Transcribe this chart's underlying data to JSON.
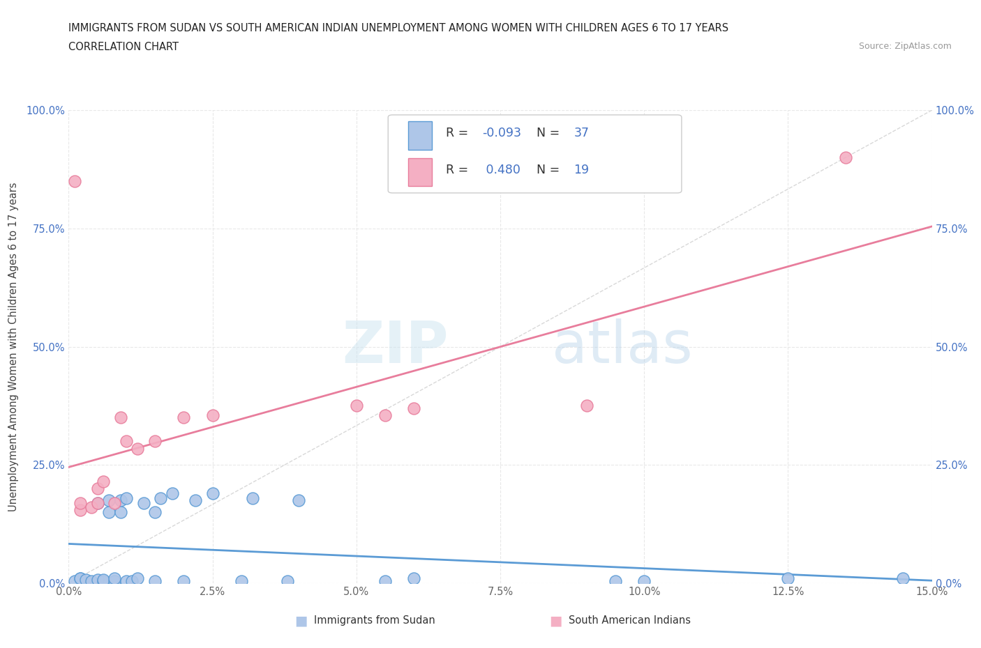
{
  "title_line1": "IMMIGRANTS FROM SUDAN VS SOUTH AMERICAN INDIAN UNEMPLOYMENT AMONG WOMEN WITH CHILDREN AGES 6 TO 17 YEARS",
  "title_line2": "CORRELATION CHART",
  "source_text": "Source: ZipAtlas.com",
  "ylabel": "Unemployment Among Women with Children Ages 6 to 17 years",
  "xlim": [
    0.0,
    0.15
  ],
  "ylim": [
    0.0,
    1.0
  ],
  "xtick_labels": [
    "0.0%",
    "2.5%",
    "5.0%",
    "7.5%",
    "10.0%",
    "12.5%",
    "15.0%"
  ],
  "xtick_vals": [
    0.0,
    0.025,
    0.05,
    0.075,
    0.1,
    0.125,
    0.15
  ],
  "ytick_labels": [
    "0.0%",
    "25.0%",
    "50.0%",
    "75.0%",
    "100.0%"
  ],
  "ytick_vals": [
    0.0,
    0.25,
    0.5,
    0.75,
    1.0
  ],
  "legend_label1": "Immigrants from Sudan",
  "legend_label2": "South American Indians",
  "R1": -0.093,
  "N1": 37,
  "R2": 0.48,
  "N2": 19,
  "color_blue_fill": "#aec6e8",
  "color_pink_fill": "#f4afc3",
  "color_blue_edge": "#5b9bd5",
  "color_pink_edge": "#e87d9c",
  "color_blue_text": "#4472c4",
  "color_diag": "#c8c8c8",
  "watermark_zip": "ZIP",
  "watermark_atlas": "atlas",
  "blue_x": [
    0.001,
    0.002,
    0.002,
    0.003,
    0.004,
    0.005,
    0.005,
    0.006,
    0.006,
    0.007,
    0.007,
    0.008,
    0.008,
    0.009,
    0.009,
    0.01,
    0.01,
    0.011,
    0.012,
    0.013,
    0.015,
    0.015,
    0.016,
    0.018,
    0.02,
    0.022,
    0.025,
    0.03,
    0.032,
    0.038,
    0.04,
    0.055,
    0.06,
    0.095,
    0.1,
    0.125,
    0.145
  ],
  "blue_y": [
    0.005,
    0.01,
    0.01,
    0.008,
    0.005,
    0.008,
    0.17,
    0.005,
    0.008,
    0.15,
    0.175,
    0.005,
    0.01,
    0.15,
    0.175,
    0.005,
    0.18,
    0.005,
    0.01,
    0.17,
    0.005,
    0.15,
    0.18,
    0.19,
    0.005,
    0.175,
    0.19,
    0.005,
    0.18,
    0.005,
    0.175,
    0.005,
    0.01,
    0.005,
    0.005,
    0.01,
    0.01
  ],
  "pink_x": [
    0.001,
    0.002,
    0.002,
    0.004,
    0.005,
    0.005,
    0.006,
    0.008,
    0.009,
    0.01,
    0.012,
    0.015,
    0.02,
    0.025,
    0.05,
    0.055,
    0.06,
    0.09,
    0.135
  ],
  "pink_y": [
    0.85,
    0.155,
    0.17,
    0.16,
    0.17,
    0.2,
    0.215,
    0.17,
    0.35,
    0.3,
    0.285,
    0.3,
    0.35,
    0.355,
    0.375,
    0.355,
    0.37,
    0.375,
    0.9
  ],
  "grid_color": "#e8e8e8",
  "grid_style": "--"
}
